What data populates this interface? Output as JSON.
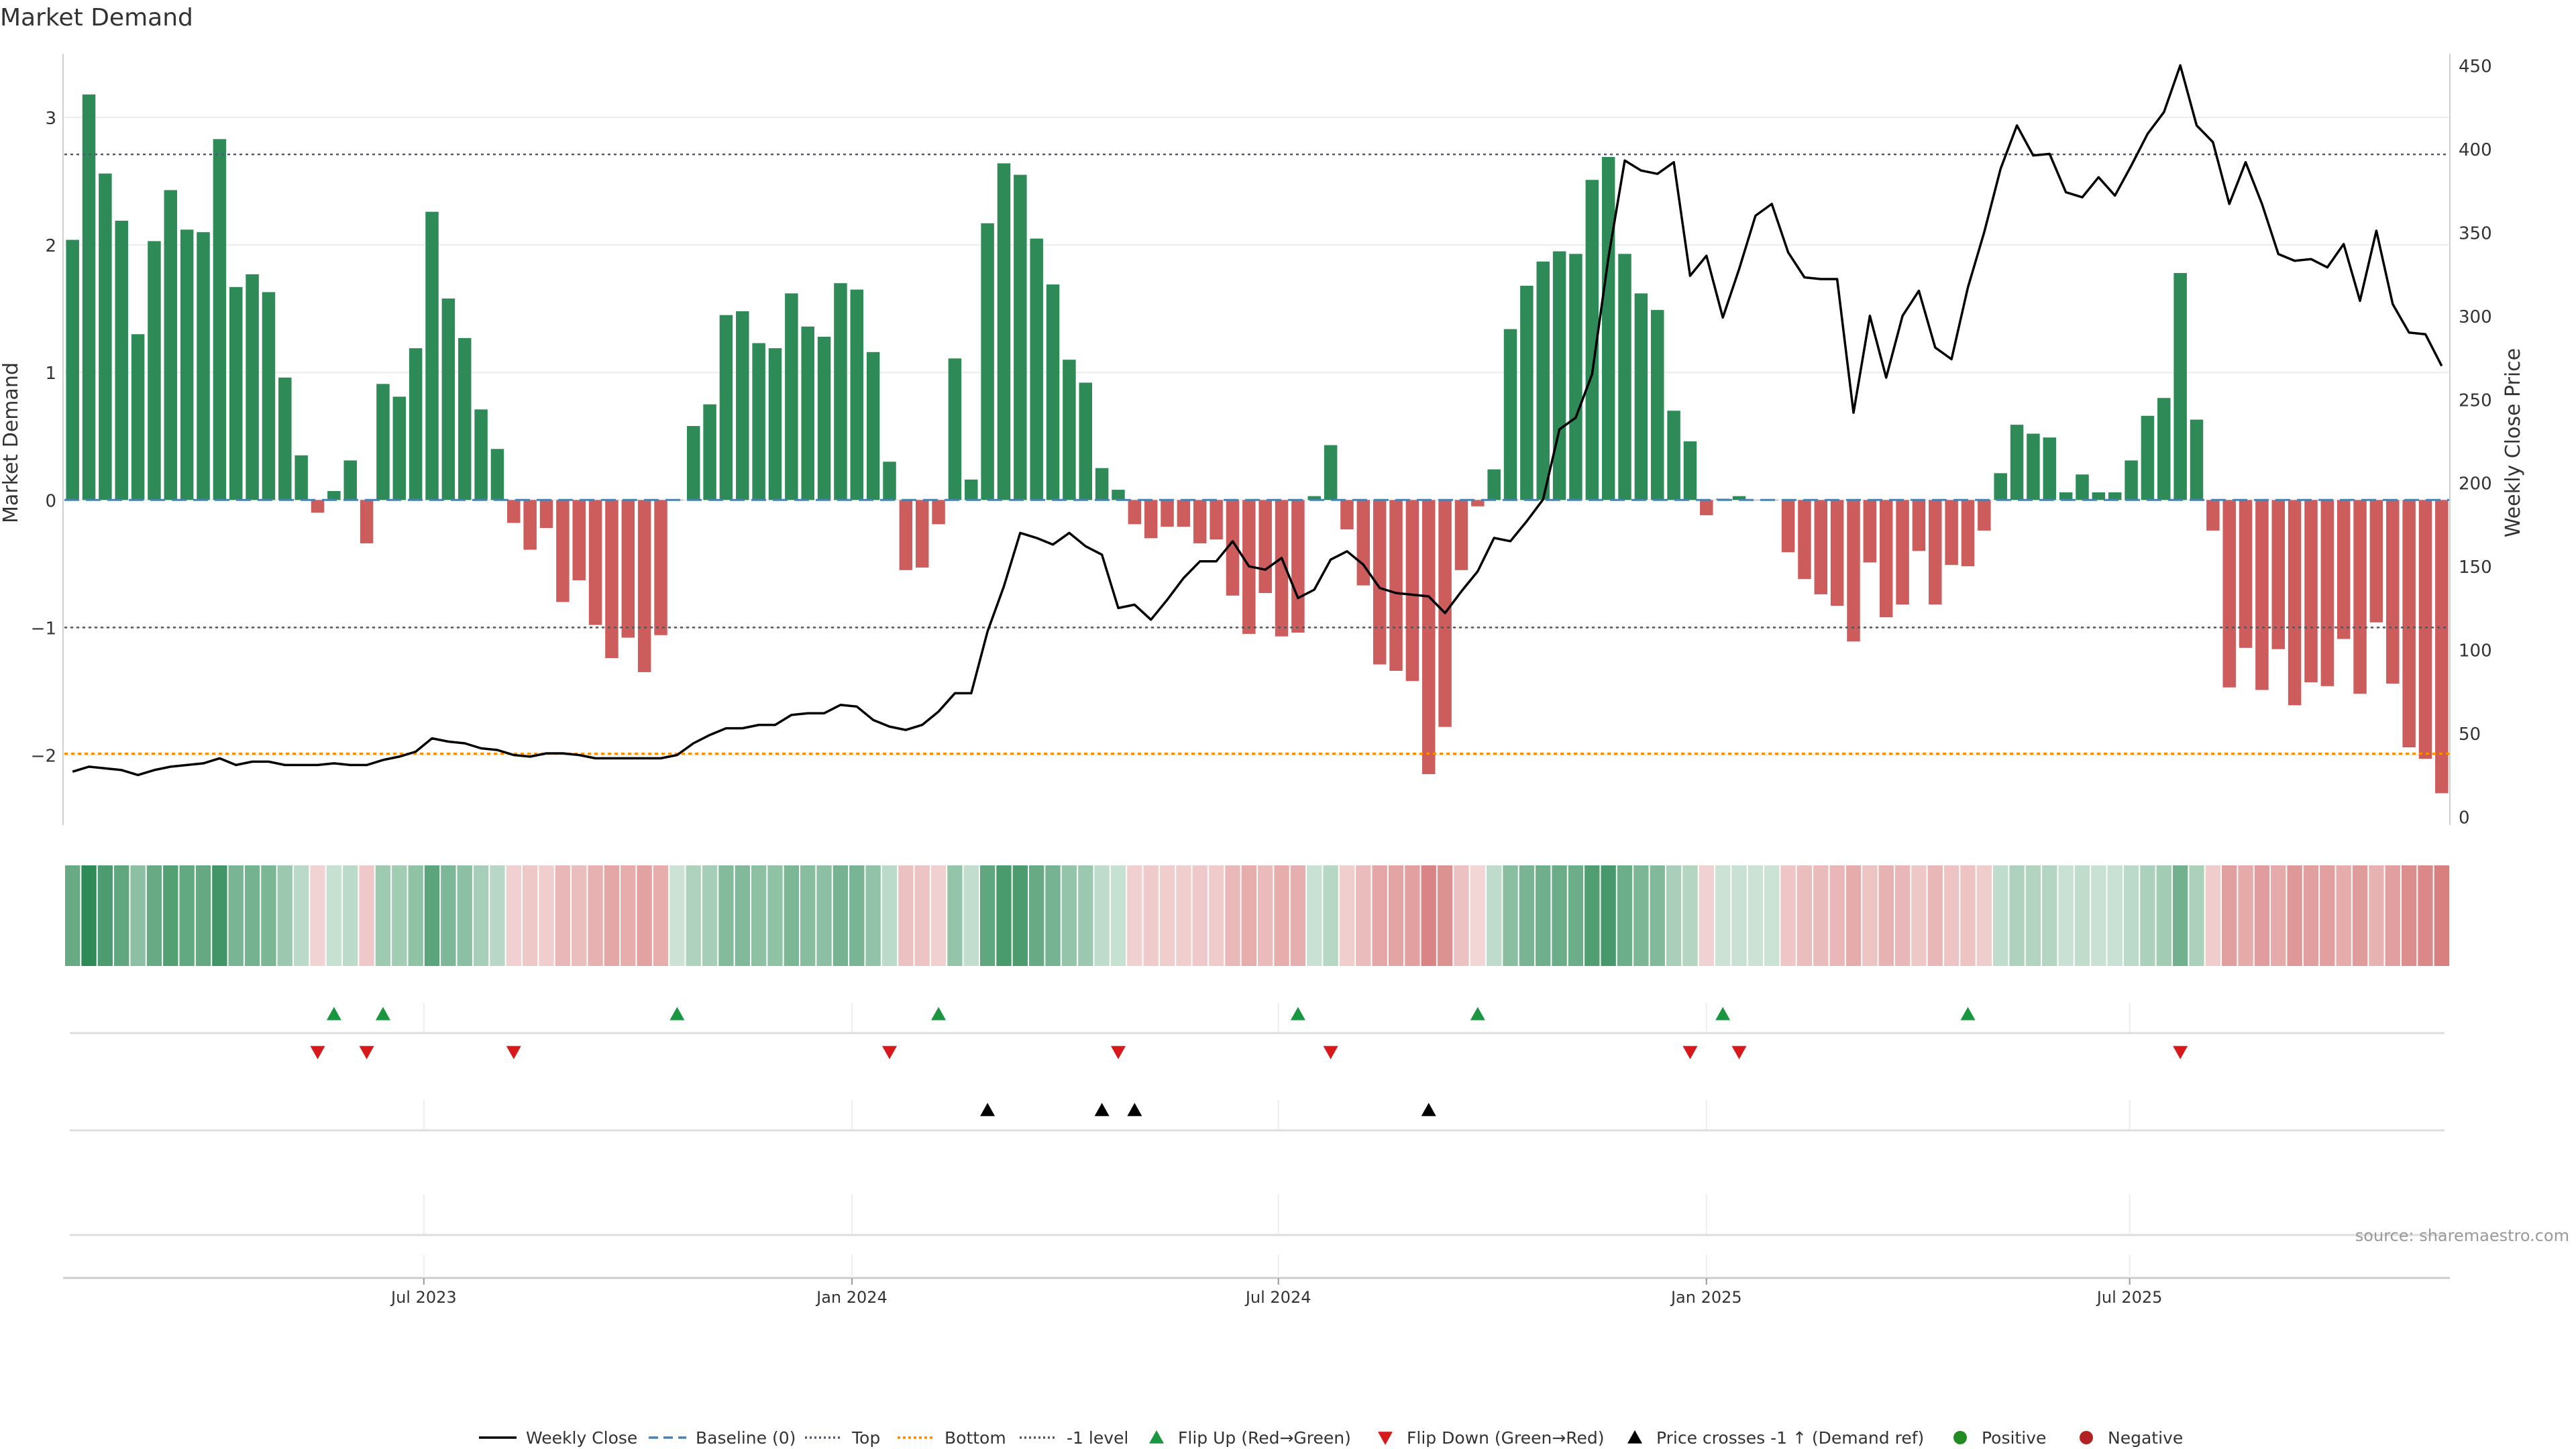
{
  "chart_data": {
    "type": "bar",
    "title": "Market Demand",
    "ylabel": "Market Demand",
    "y2label": "Weekly Close Price",
    "source": "source: sharemaestro.com",
    "ylim": [
      -2.55,
      3.5
    ],
    "y2lim": [
      -5,
      457
    ],
    "yticks": [
      -2,
      -1,
      0,
      1,
      2,
      3
    ],
    "yticklabels": [
      "−2",
      "−1",
      "0",
      "1",
      "2",
      "3"
    ],
    "y2ticks": [
      0,
      50,
      100,
      150,
      200,
      250,
      300,
      350,
      400,
      450
    ],
    "y2ticklabels": [
      "0",
      "50",
      "100",
      "150",
      "200",
      "250",
      "300",
      "350",
      "400",
      "450"
    ],
    "xticks": [
      {
        "index": 21.5,
        "label": "Jul 2023"
      },
      {
        "index": 47.7,
        "label": "Jan 2024"
      },
      {
        "index": 73.8,
        "label": "Jul 2024"
      },
      {
        "index": 100.0,
        "label": "Jan 2025"
      },
      {
        "index": 125.9,
        "label": "Jul 2025"
      }
    ],
    "reference_lines": {
      "top": 2.71,
      "bottom": -1.99,
      "minus_one": -1.0,
      "baseline": 0
    },
    "demand": [
      2.04,
      3.18,
      2.56,
      2.19,
      1.3,
      2.03,
      2.43,
      2.12,
      2.1,
      2.83,
      1.67,
      1.77,
      1.63,
      0.96,
      0.35,
      -0.1,
      0.07,
      0.31,
      -0.34,
      0.91,
      0.81,
      1.19,
      2.26,
      1.58,
      1.27,
      0.71,
      0.4,
      -0.18,
      -0.39,
      -0.22,
      -0.8,
      -0.63,
      -0.98,
      -1.24,
      -1.08,
      -1.35,
      -1.06,
      0.0,
      0.58,
      0.75,
      1.45,
      1.48,
      1.23,
      1.19,
      1.62,
      1.36,
      1.28,
      1.7,
      1.65,
      1.16,
      0.3,
      -0.55,
      -0.53,
      -0.19,
      1.11,
      0.16,
      2.17,
      2.64,
      2.55,
      2.05,
      1.69,
      1.1,
      0.92,
      0.25,
      0.08,
      -0.19,
      -0.3,
      -0.21,
      -0.21,
      -0.34,
      -0.31,
      -0.75,
      -1.05,
      -0.73,
      -1.07,
      -1.04,
      0.03,
      0.43,
      -0.23,
      -0.67,
      -1.29,
      -1.34,
      -1.42,
      -2.15,
      -1.78,
      -0.55,
      -0.05,
      0.24,
      1.34,
      1.68,
      1.87,
      1.95,
      1.93,
      2.51,
      2.69,
      1.93,
      1.62,
      1.49,
      0.7,
      0.46,
      -0.12,
      0.01,
      0.03,
      0.0,
      0.0,
      -0.41,
      -0.62,
      -0.74,
      -0.83,
      -1.11,
      -0.49,
      -0.92,
      -0.82,
      -0.4,
      -0.82,
      -0.51,
      -0.52,
      -0.24,
      0.21,
      0.59,
      0.52,
      0.49,
      0.06,
      0.2,
      0.06,
      0.06,
      0.31,
      0.66,
      0.8,
      1.78,
      0.63,
      -0.24,
      -1.47,
      -1.16,
      -1.49,
      -1.17,
      -1.61,
      -1.43,
      -1.46,
      -1.09,
      -1.52,
      -0.96,
      -1.44,
      -1.94,
      -2.03,
      -2.3
    ],
    "series": [
      {
        "name": "Weekly Close",
        "values": [
          27,
          30,
          29,
          28,
          25,
          28,
          30,
          31,
          32,
          35,
          31,
          33,
          33,
          31,
          31,
          31,
          32,
          31,
          31,
          34,
          36,
          39,
          47,
          45,
          44,
          41,
          40,
          37,
          36,
          38,
          38,
          37,
          35,
          35,
          35,
          35,
          35,
          37,
          44,
          49,
          53,
          53,
          55,
          55,
          61,
          62,
          62,
          67,
          66,
          58,
          54,
          52,
          55,
          63,
          74,
          74,
          111,
          138,
          170,
          167,
          163,
          170,
          162,
          157,
          125,
          127,
          118,
          130,
          143,
          153,
          153,
          165,
          150,
          148,
          155,
          131,
          136,
          154,
          159,
          151,
          137,
          134,
          133,
          132,
          122,
          135,
          147,
          167,
          165,
          177,
          190,
          232,
          239,
          265,
          335,
          393,
          387,
          385,
          392,
          324,
          336,
          299,
          328,
          360,
          367,
          338,
          323,
          322,
          322,
          242,
          300,
          263,
          300,
          315,
          281,
          274,
          317,
          350,
          388,
          414,
          396,
          397,
          374,
          371,
          383,
          372,
          390,
          409,
          422,
          450,
          414,
          404,
          367,
          392,
          367,
          337,
          333,
          334,
          329,
          343,
          309,
          351,
          307,
          290,
          289,
          270
        ]
      }
    ],
    "legend": [
      "Weekly Close",
      "Baseline (0)",
      "Top",
      "Bottom",
      "-1 level",
      "Flip Up (Red→Green)",
      "Flip Down (Green→Red)",
      "Price crosses -1 ↑ (Demand ref)",
      "Positive",
      "Negative"
    ],
    "flip_up_indices": [
      16,
      19,
      37,
      53,
      75,
      86,
      101,
      116
    ],
    "flip_down_indices": [
      15,
      18,
      27,
      50,
      64,
      77,
      99,
      102,
      129
    ],
    "price_cross_indices": [
      56,
      63,
      65,
      83
    ],
    "colors": {
      "positive": "#2e8b57",
      "negative": "#cd5c5c",
      "price": "#000000",
      "baseline": "#4682b4",
      "top": "#555577",
      "bottom": "#ff8c00",
      "minus_one": "#555555",
      "flip_up": "#1a9641",
      "flip_down": "#d7191c",
      "cross": "#000000",
      "positive_dot": "#228b22",
      "negative_dot": "#b22222"
    }
  }
}
